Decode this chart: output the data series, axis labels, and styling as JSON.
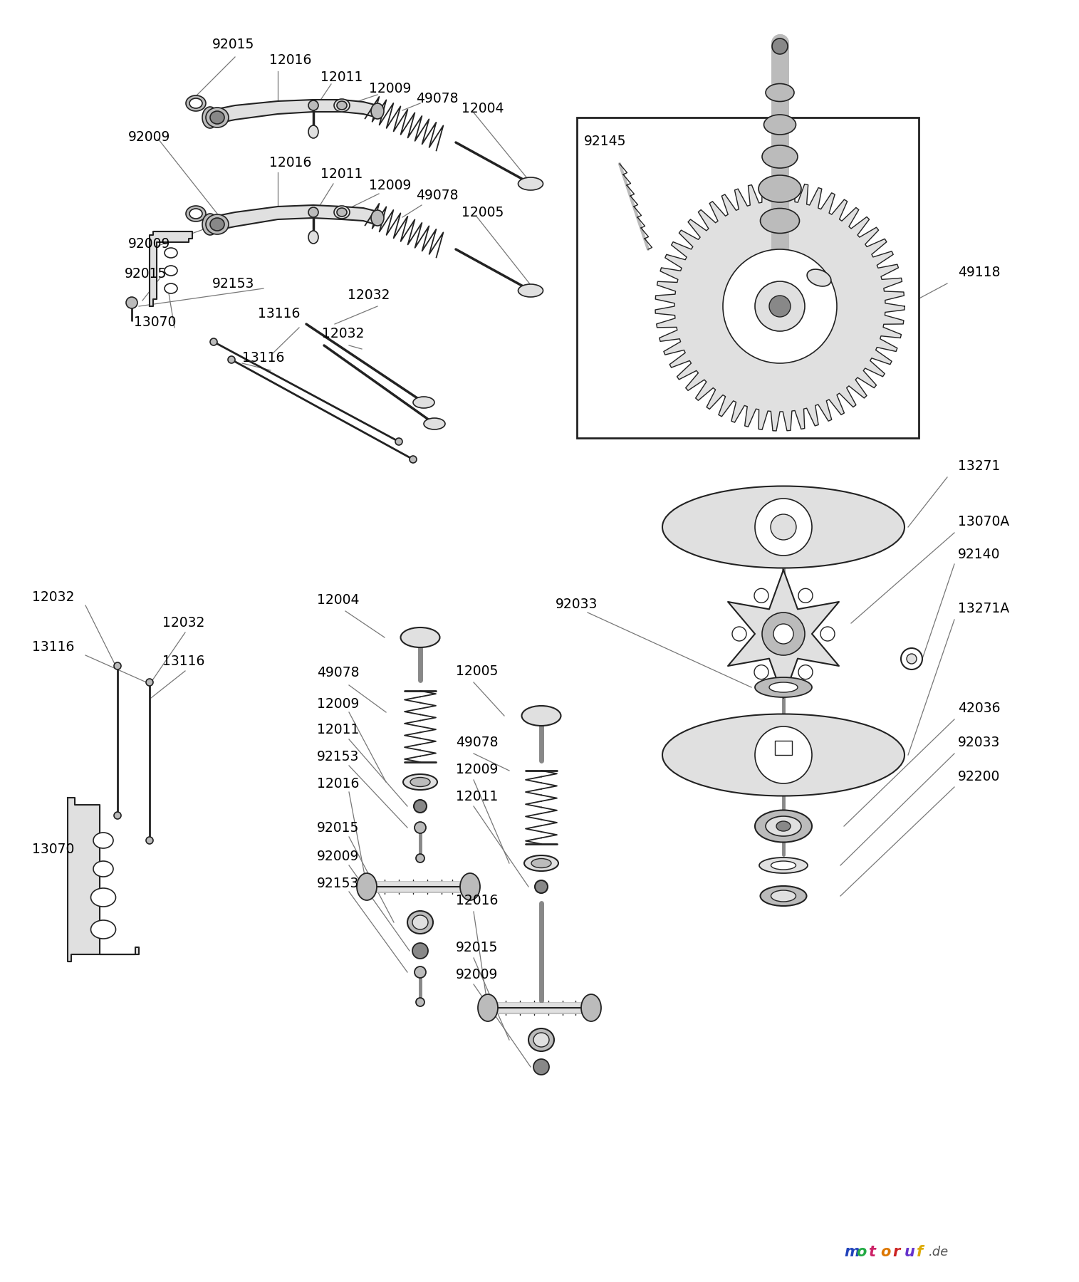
{
  "figsize": [
    15.15,
    18.0
  ],
  "dpi": 100,
  "bg": "white",
  "col_edge": "#222222",
  "col_light": "#e0e0e0",
  "col_mid": "#bbbbbb",
  "col_dark": "#888888",
  "col_black": "#111111",
  "leader_color": "#777777",
  "motoruf_chars": [
    "m",
    "o",
    "t",
    "o",
    "r",
    "u",
    "f"
  ],
  "motoruf_colors": [
    "#2244bb",
    "#22aa44",
    "#cc2266",
    "#dd7700",
    "#cc2222",
    "#6633cc",
    "#ddaa00"
  ],
  "fs_label": 13.5,
  "fs_watermark": 15
}
